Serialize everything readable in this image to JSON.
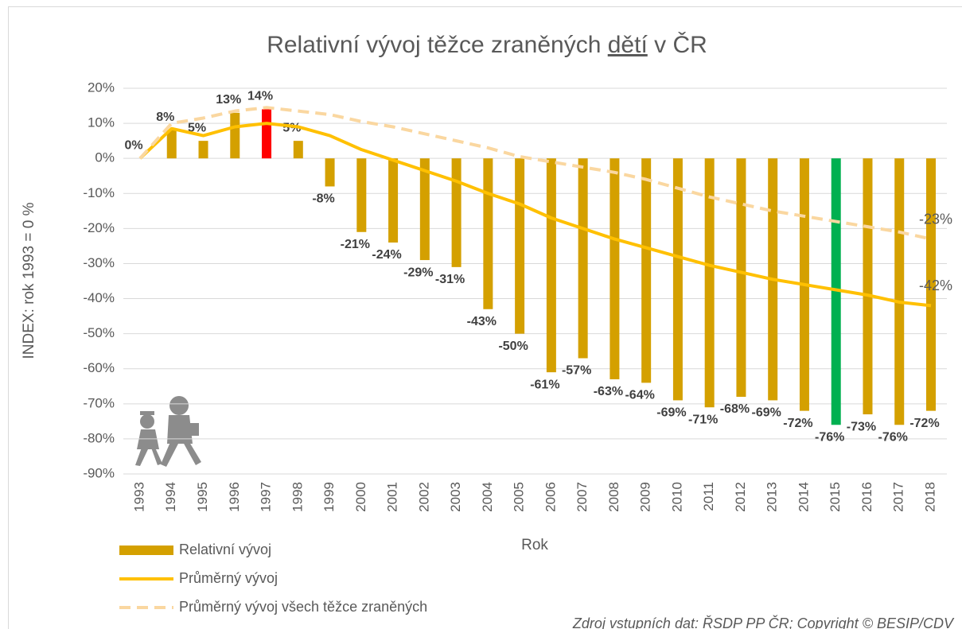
{
  "chart_data": {
    "type": "bar",
    "title_parts": [
      "Relativní vývoj těžce zraněných ",
      "dětí",
      " v ČR"
    ],
    "x_label": "Rok",
    "y_label": "INDEX: rok 1993 = 0 %",
    "source": "Zdroj vstupních dat: ŘSDP PP ČR; Copyright © BESIP/CDV",
    "categories": [
      "1993",
      "1994",
      "1995",
      "1996",
      "1997",
      "1998",
      "1999",
      "2000",
      "2001",
      "2002",
      "2003",
      "2004",
      "2005",
      "2006",
      "2007",
      "2008",
      "2009",
      "2010",
      "2011",
      "2012",
      "2013",
      "2014",
      "2015",
      "2016",
      "2017",
      "2018"
    ],
    "ylim": [
      -90,
      20
    ],
    "yticks": [
      {
        "value": 20,
        "label": "20%"
      },
      {
        "value": 10,
        "label": "10%"
      },
      {
        "value": 0,
        "label": "0%"
      },
      {
        "value": -10,
        "label": "-10%"
      },
      {
        "value": -20,
        "label": "-20%"
      },
      {
        "value": -30,
        "label": "-30%"
      },
      {
        "value": -40,
        "label": "-40%"
      },
      {
        "value": -50,
        "label": "-50%"
      },
      {
        "value": -60,
        "label": "-60%"
      },
      {
        "value": -70,
        "label": "-70%"
      },
      {
        "value": -80,
        "label": "-80%"
      },
      {
        "value": -90,
        "label": "-90%"
      }
    ],
    "grid": true,
    "series": [
      {
        "name": "Relativní vývoj",
        "type": "bar",
        "color": "#d4a000",
        "bar_colors": [
          "#d4a000",
          "#d4a000",
          "#d4a000",
          "#d4a000",
          "#ff0000",
          "#d4a000",
          "#d4a000",
          "#d4a000",
          "#d4a000",
          "#d4a000",
          "#d4a000",
          "#d4a000",
          "#d4a000",
          "#d4a000",
          "#d4a000",
          "#d4a000",
          "#d4a000",
          "#d4a000",
          "#d4a000",
          "#d4a000",
          "#d4a000",
          "#d4a000",
          "#00b050",
          "#d4a000",
          "#d4a000",
          "#d4a000"
        ],
        "values": [
          0,
          8,
          5,
          13,
          14,
          5,
          -8,
          -21,
          -24,
          -29,
          -31,
          -43,
          -50,
          -61,
          -57,
          -63,
          -64,
          -69,
          -71,
          -68,
          -69,
          -72,
          -76,
          -73,
          -76,
          -72
        ],
        "value_labels": [
          "0%",
          "8%",
          "5%",
          "13%",
          "14%",
          "5%",
          "-8%",
          "-21%",
          "-24%",
          "-29%",
          "-31%",
          "-43%",
          "-50%",
          "-61%",
          "-57%",
          "-63%",
          "-64%",
          "-69%",
          "-71%",
          "-68%",
          "-69%",
          "-72%",
          "-76%",
          "-73%",
          "-76%",
          "-72%"
        ]
      },
      {
        "name": "Průměrný vývoj",
        "type": "line",
        "color": "#ffc000",
        "dashed": false,
        "values": [
          0,
          8.5,
          6.5,
          9,
          10,
          9,
          6.5,
          2.5,
          -0.5,
          -3.5,
          -6.5,
          -10,
          -13,
          -17,
          -20,
          -23,
          -25.5,
          -28,
          -30.5,
          -32.5,
          -34.5,
          -36,
          -37.5,
          -39,
          -41,
          -42
        ],
        "value_labels": [
          null,
          null,
          null,
          null,
          null,
          null,
          null,
          null,
          null,
          null,
          null,
          null,
          null,
          null,
          null,
          null,
          null,
          null,
          null,
          null,
          null,
          null,
          null,
          null,
          null,
          "-42%"
        ]
      },
      {
        "name": "Průměrný vývoj všech těžce zraněných",
        "type": "line",
        "color": "#fad7a0",
        "dashed": true,
        "values": [
          0,
          10,
          11.5,
          13.5,
          14.5,
          13.5,
          12.5,
          10.5,
          9,
          7,
          5,
          3,
          0.5,
          -1,
          -2.5,
          -4,
          -6,
          -8.5,
          -11,
          -13,
          -15,
          -16.5,
          -18,
          -19.5,
          -21,
          -23
        ],
        "value_labels": [
          null,
          null,
          null,
          null,
          null,
          null,
          null,
          null,
          null,
          null,
          null,
          null,
          null,
          null,
          null,
          null,
          null,
          null,
          null,
          null,
          null,
          null,
          null,
          null,
          null,
          "-23%"
        ]
      }
    ]
  }
}
